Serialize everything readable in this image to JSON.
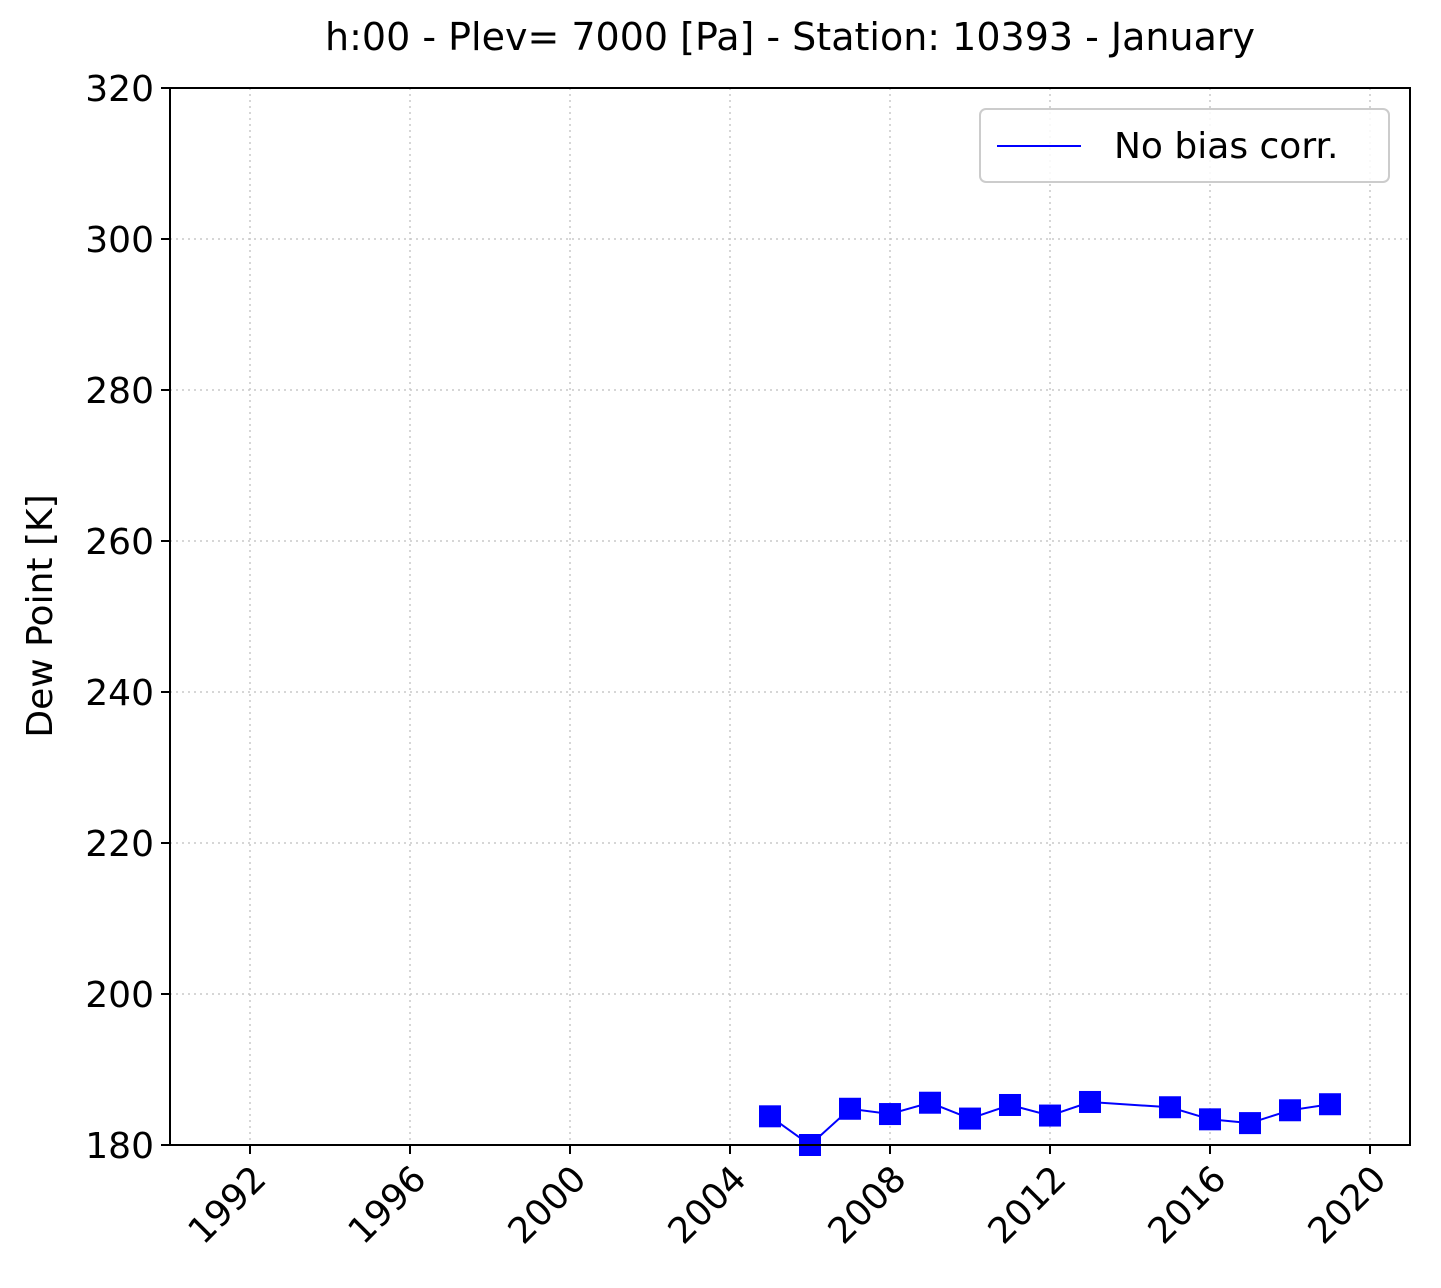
{
  "chart_data": {
    "type": "line",
    "title": "h:00 - Plev= 7000 [Pa] - Station: 10393 - January",
    "xlabel": "",
    "ylabel": "Dew Point [K]",
    "xlim": [
      1990.0,
      2021.0
    ],
    "ylim": [
      180,
      320
    ],
    "x_ticks": [
      "1992",
      "1996",
      "2000",
      "2004",
      "2008",
      "2012",
      "2016",
      "2020"
    ],
    "y_ticks": [
      "180",
      "200",
      "220",
      "240",
      "260",
      "280",
      "300",
      "320"
    ],
    "grid": true,
    "legend_position": "top-right",
    "series": [
      {
        "name": "No bias corr.",
        "color": "#0000ff",
        "marker": "square",
        "points": [
          [
            2005,
            183.8
          ],
          [
            2006,
            180.0
          ],
          [
            2007,
            184.8
          ],
          [
            2008,
            184.1
          ],
          [
            2009,
            185.6
          ],
          [
            2010,
            183.5
          ],
          [
            2011,
            185.3
          ],
          [
            2012,
            183.9
          ],
          [
            2013,
            185.7
          ],
          [
            2015,
            185.0
          ],
          [
            2016,
            183.4
          ],
          [
            2017,
            182.9
          ],
          [
            2018,
            184.6
          ],
          [
            2019,
            185.4
          ]
        ]
      }
    ]
  }
}
